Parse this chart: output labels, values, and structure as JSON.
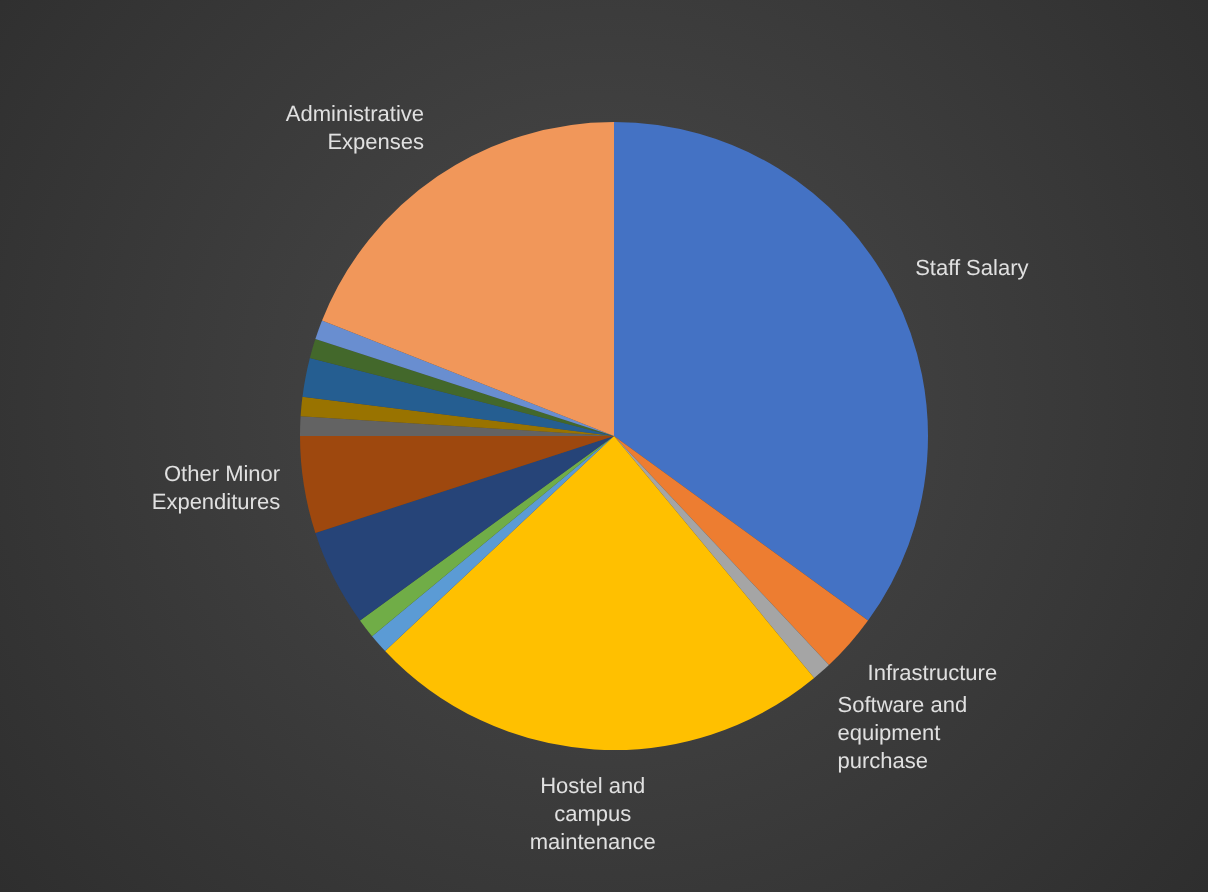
{
  "chart_data": {
    "type": "pie",
    "categories": [
      "Staff Salary",
      "Infrastructure",
      "Software and equipment purchase",
      "Hostel and campus maintenance",
      null,
      null,
      null,
      "Other Minor Expenditures",
      null,
      null,
      null,
      null,
      null,
      "Administrative Expenses"
    ],
    "values": [
      35,
      3,
      1,
      24,
      1,
      1,
      5,
      5,
      1,
      1,
      2,
      1,
      1,
      19
    ],
    "colors": [
      "#4472c4",
      "#ed7d31",
      "#a5a5a5",
      "#ffc000",
      "#5b9bd5",
      "#70ad47",
      "#264478",
      "#9e480e",
      "#636363",
      "#997300",
      "#255e91",
      "#43682b",
      "#698ed0",
      "#f1975a"
    ]
  }
}
